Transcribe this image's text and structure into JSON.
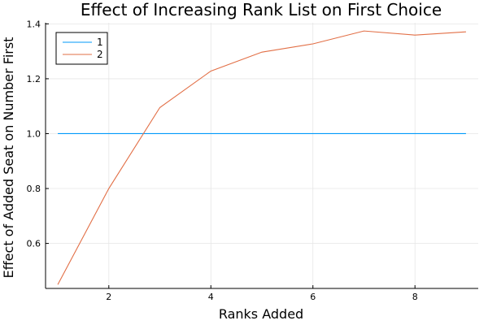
{
  "chart_data": {
    "type": "line",
    "title": "Effect of Increasing Rank List on First Choice",
    "xlabel": "Ranks Added",
    "ylabel": "Effect of Added Seat on Number First",
    "xlim": [
      0.76,
      9.24
    ],
    "ylim": [
      0.436,
      1.404
    ],
    "xticks": [
      2,
      4,
      6,
      8
    ],
    "yticks": [
      0.6,
      0.8,
      1.0,
      1.2,
      1.4
    ],
    "ytick_labels": [
      "0.6",
      "0.8",
      "1.0",
      "1.2",
      "1.4"
    ],
    "grid": true,
    "legend_position": "top-left",
    "x": [
      1,
      2,
      3,
      4,
      5,
      6,
      7,
      8,
      9
    ],
    "series": [
      {
        "name": "1",
        "color": "#009AFA",
        "values": [
          1.0,
          1.0,
          1.0,
          1.0,
          1.0,
          1.0,
          1.0,
          1.0,
          1.0
        ]
      },
      {
        "name": "2",
        "color": "#E26F46",
        "values": [
          0.45,
          0.8,
          1.095,
          1.228,
          1.297,
          1.327,
          1.374,
          1.359,
          1.371
        ]
      }
    ]
  }
}
